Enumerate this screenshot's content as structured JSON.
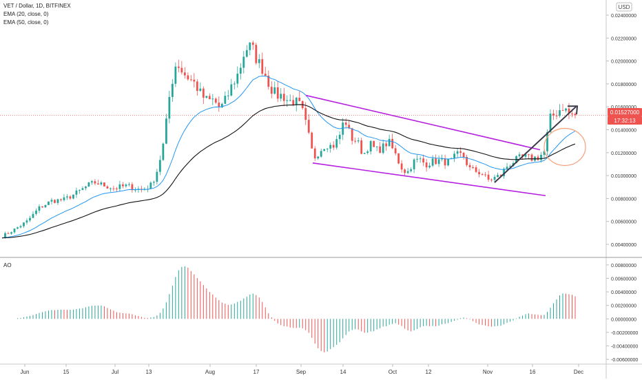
{
  "legend": {
    "symbol_line": "VET / Dollar, 1D, BITFINEX",
    "ema20": "EMA (20, close, 0)",
    "ema50": "EMA (50, close, 0)"
  },
  "currency_badge": "USD",
  "price_label": "0.01527000",
  "countdown_label": "17:32:13",
  "ao_label": "AO",
  "colors": {
    "up": "#26a69a",
    "down": "#ef5350",
    "ema20": "#2196f3",
    "ema50": "#111111",
    "channel": "#b620e0",
    "arrow": "#3a3a4a",
    "circle": "#f5a07a",
    "price_badge": "#ef5350"
  },
  "chart_data": [
    {
      "type": "candlestick",
      "title": "VET / Dollar, 1D, BITFINEX",
      "x_ticks": [
        "Jun",
        "15",
        "Jul",
        "13",
        "Aug",
        "17",
        "Sep",
        "14",
        "Oct",
        "12",
        "Nov",
        "16",
        "Dec"
      ],
      "y_ticks": [
        "0.02400000",
        "0.02200000",
        "0.02000000",
        "0.01800000",
        "0.01600000",
        "0.01400000",
        "0.01200000",
        "0.01000000",
        "0.00800000",
        "0.00600000",
        "0.00400000"
      ],
      "ylim": [
        0.0031,
        0.0246
      ],
      "last_price": 0.01527,
      "close_path": [
        [
          0,
          0.0047
        ],
        [
          10,
          0.0053
        ],
        [
          20,
          0.006
        ],
        [
          30,
          0.0072
        ],
        [
          40,
          0.0078
        ],
        [
          50,
          0.0079
        ],
        [
          60,
          0.0085
        ],
        [
          70,
          0.0092
        ],
        [
          75,
          0.0094
        ],
        [
          80,
          0.0092
        ],
        [
          90,
          0.0089
        ],
        [
          100,
          0.0091
        ],
        [
          110,
          0.0088
        ],
        [
          115,
          0.0089
        ],
        [
          120,
          0.0092
        ],
        [
          125,
          0.0106
        ],
        [
          130,
          0.013
        ],
        [
          135,
          0.0175
        ],
        [
          140,
          0.02
        ],
        [
          145,
          0.019
        ],
        [
          150,
          0.0185
        ],
        [
          155,
          0.018
        ],
        [
          160,
          0.017
        ],
        [
          165,
          0.0165
        ],
        [
          170,
          0.0166
        ],
        [
          175,
          0.0158
        ],
        [
          180,
          0.0167
        ],
        [
          185,
          0.018
        ],
        [
          190,
          0.019
        ],
        [
          195,
          0.021
        ],
        [
          200,
          0.0213
        ],
        [
          205,
          0.02
        ],
        [
          210,
          0.0192
        ],
        [
          215,
          0.0178
        ],
        [
          220,
          0.017
        ],
        [
          225,
          0.017
        ],
        [
          230,
          0.0165
        ],
        [
          235,
          0.0165
        ],
        [
          240,
          0.016
        ],
        [
          245,
          0.014
        ],
        [
          250,
          0.0115
        ],
        [
          255,
          0.0122
        ],
        [
          260,
          0.0128
        ],
        [
          265,
          0.0125
        ],
        [
          270,
          0.0132
        ],
        [
          275,
          0.015
        ],
        [
          280,
          0.0133
        ],
        [
          285,
          0.013
        ],
        [
          290,
          0.0118
        ],
        [
          295,
          0.0128
        ],
        [
          300,
          0.0122
        ],
        [
          305,
          0.0124
        ],
        [
          310,
          0.013
        ],
        [
          315,
          0.012
        ],
        [
          320,
          0.0108
        ],
        [
          325,
          0.0102
        ],
        [
          330,
          0.0112
        ],
        [
          335,
          0.0114
        ],
        [
          340,
          0.011
        ],
        [
          345,
          0.0112
        ],
        [
          350,
          0.0113
        ],
        [
          355,
          0.0112
        ],
        [
          360,
          0.0112
        ],
        [
          365,
          0.0118
        ],
        [
          370,
          0.0118
        ],
        [
          375,
          0.0106
        ],
        [
          380,
          0.0104
        ],
        [
          385,
          0.0102
        ],
        [
          390,
          0.0096
        ],
        [
          395,
          0.0098
        ],
        [
          400,
          0.01
        ],
        [
          405,
          0.0108
        ],
        [
          410,
          0.0112
        ],
        [
          415,
          0.0115
        ],
        [
          420,
          0.0116
        ],
        [
          425,
          0.0115
        ],
        [
          430,
          0.0116
        ],
        [
          435,
          0.012
        ],
        [
          440,
          0.015
        ],
        [
          445,
          0.0155
        ],
        [
          450,
          0.016
        ],
        [
          455,
          0.0154
        ],
        [
          460,
          0.01527
        ]
      ],
      "series": [
        {
          "name": "EMA (20, close, 0)",
          "period": 20
        },
        {
          "name": "EMA (50, close, 0)",
          "period": 50
        }
      ]
    },
    {
      "type": "histogram",
      "title": "AO",
      "y_ticks": [
        "0.00800000",
        "0.00600000",
        "0.00400000",
        "0.00200000",
        "0.00000000",
        "-0.00200000",
        "-0.00400000",
        "-0.00600000"
      ],
      "ylim": [
        -0.0064,
        0.0087
      ]
    }
  ]
}
